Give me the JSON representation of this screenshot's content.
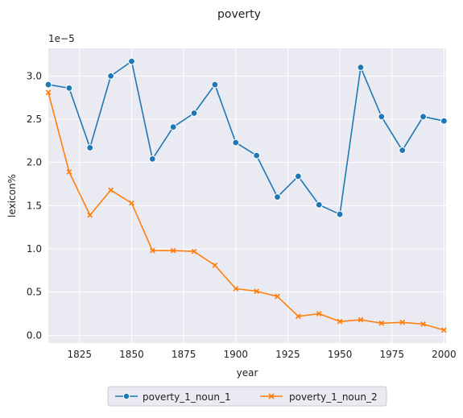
{
  "chart_data": {
    "type": "line",
    "title": "poverty",
    "xlabel": "year",
    "ylabel": "lexicon%",
    "y_offset_label": "1e−5",
    "x_ticks": [
      1825,
      1850,
      1875,
      1900,
      1925,
      1950,
      1975,
      2000
    ],
    "x_tick_labels": [
      "1825",
      "1850",
      "1875",
      "1900",
      "1925",
      "1950",
      "1975",
      "2000"
    ],
    "y_ticks": [
      0.0,
      0.5,
      1.0,
      1.5,
      2.0,
      2.5,
      3.0
    ],
    "y_tick_labels": [
      "0.0",
      "0.5",
      "1.0",
      "1.5",
      "2.0",
      "2.5",
      "3.0"
    ],
    "xlim": [
      1810,
      2001
    ],
    "ylim": [
      -0.09,
      3.32
    ],
    "grid": true,
    "legend_position": "bottom-center",
    "x": [
      1810,
      1820,
      1830,
      1840,
      1850,
      1860,
      1870,
      1880,
      1890,
      1900,
      1910,
      1920,
      1930,
      1940,
      1950,
      1960,
      1970,
      1980,
      1990,
      2000
    ],
    "series": [
      {
        "name": "poverty_1_noun_1",
        "color": "#1f77b4",
        "marker": "circle",
        "values": [
          2.9,
          2.86,
          2.17,
          3.0,
          3.17,
          2.04,
          2.41,
          2.57,
          2.9,
          2.23,
          2.08,
          1.6,
          1.84,
          1.51,
          1.4,
          3.1,
          2.53,
          2.14,
          2.53,
          2.48
        ]
      },
      {
        "name": "poverty_1_noun_2",
        "color": "#ff7f0e",
        "marker": "x",
        "values": [
          2.81,
          1.89,
          1.39,
          1.68,
          1.53,
          0.98,
          0.98,
          0.97,
          0.81,
          0.54,
          0.51,
          0.45,
          0.22,
          0.25,
          0.16,
          0.18,
          0.14,
          0.15,
          0.13,
          0.06
        ]
      }
    ]
  }
}
